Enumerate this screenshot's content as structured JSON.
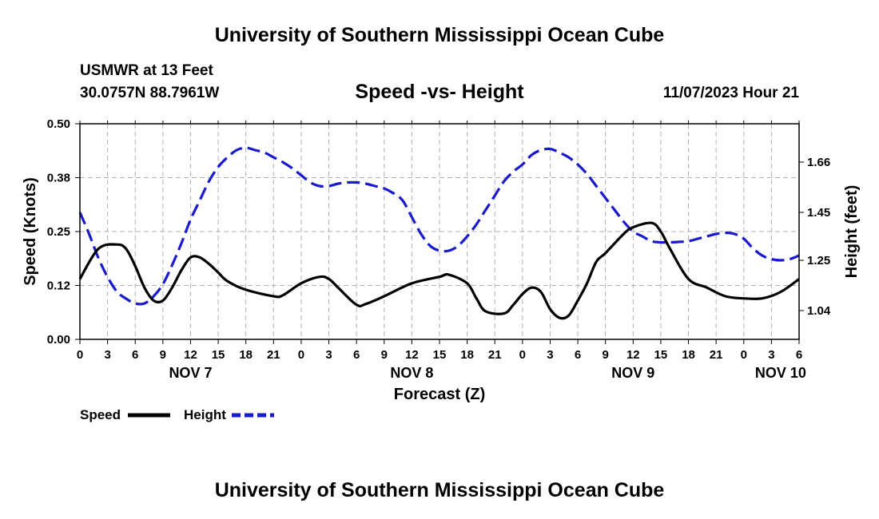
{
  "header": {
    "title_top": "University of Southern Mississippi Ocean Cube",
    "station": "USMWR at 13 Feet",
    "coords": "30.0757N  88.7961W",
    "datetime": "11/07/2023 Hour 21",
    "title_bottom": "University of Southern Mississippi Ocean Cube"
  },
  "colors": {
    "speed": "#000000",
    "height": "#1a1acd",
    "grid": "#b0b0b0"
  },
  "chart_data": {
    "type": "line",
    "title": "Speed -vs- Height",
    "xlabel": "Forecast (Z)",
    "ylabel_left": "Speed (Knots)",
    "ylabel_right": "Height (feet)",
    "x_hours_range": [
      0,
      78
    ],
    "x_tick_hours": [
      0,
      3,
      6,
      9,
      12,
      15,
      18,
      21,
      24,
      27,
      30,
      33,
      36,
      39,
      42,
      45,
      48,
      51,
      54,
      57,
      60,
      63,
      66,
      69,
      72,
      75,
      78
    ],
    "x_tick_labels": [
      "0",
      "3",
      "6",
      "9",
      "12",
      "15",
      "18",
      "21",
      "0",
      "3",
      "6",
      "9",
      "12",
      "15",
      "18",
      "21",
      "0",
      "3",
      "6",
      "9",
      "12",
      "15",
      "18",
      "21",
      "0",
      "3",
      "6"
    ],
    "day_labels": [
      {
        "hour": 12,
        "label": "NOV 7"
      },
      {
        "hour": 36,
        "label": "NOV 8"
      },
      {
        "hour": 60,
        "label": "NOV 9"
      },
      {
        "hour": 76,
        "label": "NOV 10"
      }
    ],
    "left_axis": {
      "range": [
        0,
        0.5
      ],
      "ticks": [
        0,
        0.125,
        0.25,
        0.375,
        0.5
      ],
      "tick_labels": [
        "0.00",
        "0.12",
        "0.25",
        "0.38",
        "0.50"
      ]
    },
    "right_axis": {
      "range": [
        0.92,
        1.82
      ],
      "ticks": [
        1.04,
        1.25,
        1.45,
        1.66
      ],
      "tick_labels": [
        "1.04",
        "1.25",
        "1.45",
        "1.66"
      ]
    },
    "series": [
      {
        "name": "Speed",
        "axis": "left",
        "style": "solid",
        "x": [
          0,
          2,
          4,
          5,
          6,
          7,
          8,
          9,
          10,
          11,
          12,
          13,
          14,
          15,
          16,
          18,
          21,
          22,
          24,
          26,
          27,
          28,
          30,
          31,
          33,
          36,
          39,
          40,
          42,
          43,
          44,
          46,
          47,
          48,
          49,
          50,
          51,
          52,
          53,
          54,
          55,
          56,
          57,
          59,
          60,
          62,
          63,
          64,
          66,
          68,
          70,
          72,
          74,
          76,
          78
        ],
        "values": [
          0.14,
          0.21,
          0.22,
          0.21,
          0.17,
          0.12,
          0.09,
          0.09,
          0.12,
          0.16,
          0.19,
          0.19,
          0.175,
          0.155,
          0.135,
          0.115,
          0.1,
          0.102,
          0.13,
          0.145,
          0.14,
          0.12,
          0.08,
          0.082,
          0.1,
          0.13,
          0.145,
          0.15,
          0.13,
          0.095,
          0.065,
          0.06,
          0.08,
          0.105,
          0.12,
          0.11,
          0.07,
          0.05,
          0.055,
          0.09,
          0.13,
          0.18,
          0.2,
          0.245,
          0.26,
          0.27,
          0.25,
          0.21,
          0.14,
          0.12,
          0.1,
          0.095,
          0.095,
          0.11,
          0.14
        ]
      },
      {
        "name": "Height",
        "axis": "right",
        "style": "dashed",
        "x": [
          0,
          1,
          2,
          3,
          4,
          5,
          6,
          7,
          8,
          9,
          10,
          11,
          12,
          13,
          14,
          15,
          16,
          17,
          18,
          19,
          20,
          21,
          22,
          23,
          24,
          25,
          26,
          27,
          28,
          29,
          30,
          31,
          32,
          33,
          34,
          35,
          36,
          37,
          38,
          39,
          40,
          41,
          42,
          43,
          44,
          45,
          46,
          47,
          48,
          49,
          50,
          51,
          52,
          53,
          54,
          55,
          56,
          57,
          58,
          59,
          60,
          61,
          62,
          63,
          64,
          65,
          66,
          67,
          68,
          69,
          70,
          71,
          72,
          73,
          74,
          75,
          76,
          77,
          78
        ],
        "values": [
          1.45,
          1.36,
          1.26,
          1.18,
          1.12,
          1.09,
          1.07,
          1.07,
          1.1,
          1.15,
          1.23,
          1.32,
          1.42,
          1.5,
          1.58,
          1.64,
          1.68,
          1.71,
          1.72,
          1.71,
          1.7,
          1.68,
          1.66,
          1.635,
          1.605,
          1.575,
          1.56,
          1.56,
          1.57,
          1.575,
          1.575,
          1.57,
          1.56,
          1.55,
          1.53,
          1.5,
          1.43,
          1.36,
          1.31,
          1.29,
          1.29,
          1.31,
          1.35,
          1.4,
          1.46,
          1.52,
          1.58,
          1.62,
          1.65,
          1.69,
          1.71,
          1.715,
          1.7,
          1.68,
          1.65,
          1.61,
          1.56,
          1.51,
          1.46,
          1.41,
          1.37,
          1.35,
          1.33,
          1.325,
          1.325,
          1.327,
          1.33,
          1.34,
          1.35,
          1.36,
          1.365,
          1.36,
          1.34,
          1.3,
          1.27,
          1.255,
          1.25,
          1.255,
          1.27
        ]
      }
    ],
    "legend": [
      {
        "label": "Speed",
        "style": "solid"
      },
      {
        "label": "Height",
        "style": "dashed"
      }
    ]
  }
}
